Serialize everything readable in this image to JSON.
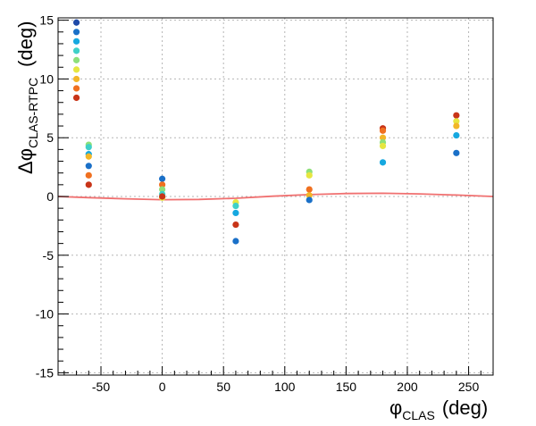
{
  "chart_data": {
    "type": "scatter",
    "title": "",
    "xlabel": {
      "main": "φ",
      "sub": "CLAS",
      "unit": "(deg)"
    },
    "ylabel": {
      "main": "Δφ",
      "sub": "CLAS-RTPC",
      "unit": "(deg)"
    },
    "xlim": [
      -85,
      270
    ],
    "ylim": [
      -15.2,
      15.2
    ],
    "x_major_ticks": [
      -50,
      0,
      50,
      100,
      150,
      200,
      250
    ],
    "y_major_ticks": [
      -15,
      -10,
      -5,
      0,
      5,
      10,
      15
    ],
    "x_tick_labels": [
      "-50",
      "0",
      "50",
      "100",
      "150",
      "200",
      "250"
    ],
    "y_tick_labels": [
      "-15",
      "-10",
      "-5",
      "0",
      "5",
      "10",
      "15"
    ],
    "grid": true,
    "fit_curve": {
      "color": "#f07070",
      "x": [
        -85,
        -60,
        -30,
        0,
        30,
        60,
        90,
        120,
        150,
        180,
        210,
        240,
        270
      ],
      "y": [
        0.0,
        -0.1,
        -0.2,
        -0.27,
        -0.25,
        -0.15,
        0.02,
        0.16,
        0.25,
        0.27,
        0.22,
        0.12,
        0.0
      ]
    },
    "points": [
      {
        "x": -70,
        "y": 14.8,
        "color": "#1f4aa8"
      },
      {
        "x": -70,
        "y": 14.0,
        "color": "#1a70c8"
      },
      {
        "x": -70,
        "y": 13.2,
        "color": "#16a8e0"
      },
      {
        "x": -70,
        "y": 12.4,
        "color": "#3fd0c8"
      },
      {
        "x": -70,
        "y": 11.6,
        "color": "#8ee07a"
      },
      {
        "x": -70,
        "y": 10.8,
        "color": "#e6e640"
      },
      {
        "x": -70,
        "y": 10.0,
        "color": "#f2b628"
      },
      {
        "x": -70,
        "y": 9.2,
        "color": "#f07020"
      },
      {
        "x": -70,
        "y": 8.4,
        "color": "#c83418"
      },
      {
        "x": -60,
        "y": 4.4,
        "color": "#8ee07a"
      },
      {
        "x": -60,
        "y": 4.2,
        "color": "#3fd0c8"
      },
      {
        "x": -60,
        "y": 3.6,
        "color": "#16a8e0"
      },
      {
        "x": -60,
        "y": 3.4,
        "color": "#f2b628"
      },
      {
        "x": -60,
        "y": 2.6,
        "color": "#1a70c8"
      },
      {
        "x": -60,
        "y": 1.8,
        "color": "#f07020"
      },
      {
        "x": -60,
        "y": 1.0,
        "color": "#c83418"
      },
      {
        "x": 0,
        "y": 1.5,
        "color": "#1a70c8"
      },
      {
        "x": 0,
        "y": 1.0,
        "color": "#f07020"
      },
      {
        "x": 0,
        "y": 0.6,
        "color": "#8ee07a"
      },
      {
        "x": 0,
        "y": 0.2,
        "color": "#3fd0c8"
      },
      {
        "x": 0,
        "y": -0.1,
        "color": "#e6e640"
      },
      {
        "x": 0,
        "y": 0.0,
        "color": "#c83418"
      },
      {
        "x": 60,
        "y": -0.5,
        "color": "#e6e640"
      },
      {
        "x": 60,
        "y": -0.8,
        "color": "#3fd0c8"
      },
      {
        "x": 60,
        "y": -1.4,
        "color": "#16a8e0"
      },
      {
        "x": 60,
        "y": -2.4,
        "color": "#c83418"
      },
      {
        "x": 60,
        "y": -3.8,
        "color": "#1a70c8"
      },
      {
        "x": 120,
        "y": 2.1,
        "color": "#8ee07a"
      },
      {
        "x": 120,
        "y": 1.8,
        "color": "#e6e640"
      },
      {
        "x": 120,
        "y": 0.6,
        "color": "#f07020"
      },
      {
        "x": 120,
        "y": 0.1,
        "color": "#f2b628"
      },
      {
        "x": 120,
        "y": -0.3,
        "color": "#1a70c8"
      },
      {
        "x": 180,
        "y": 5.8,
        "color": "#c83418"
      },
      {
        "x": 180,
        "y": 5.6,
        "color": "#f07020"
      },
      {
        "x": 180,
        "y": 5.0,
        "color": "#f2b628"
      },
      {
        "x": 180,
        "y": 4.6,
        "color": "#8ee07a"
      },
      {
        "x": 180,
        "y": 4.3,
        "color": "#e6e640"
      },
      {
        "x": 180,
        "y": 2.9,
        "color": "#16a8e0"
      },
      {
        "x": 240,
        "y": 6.9,
        "color": "#c83418"
      },
      {
        "x": 240,
        "y": 6.4,
        "color": "#e6e640"
      },
      {
        "x": 240,
        "y": 6.0,
        "color": "#f2b628"
      },
      {
        "x": 240,
        "y": 5.2,
        "color": "#16a8e0"
      },
      {
        "x": 240,
        "y": 3.7,
        "color": "#1a70c8"
      }
    ]
  }
}
